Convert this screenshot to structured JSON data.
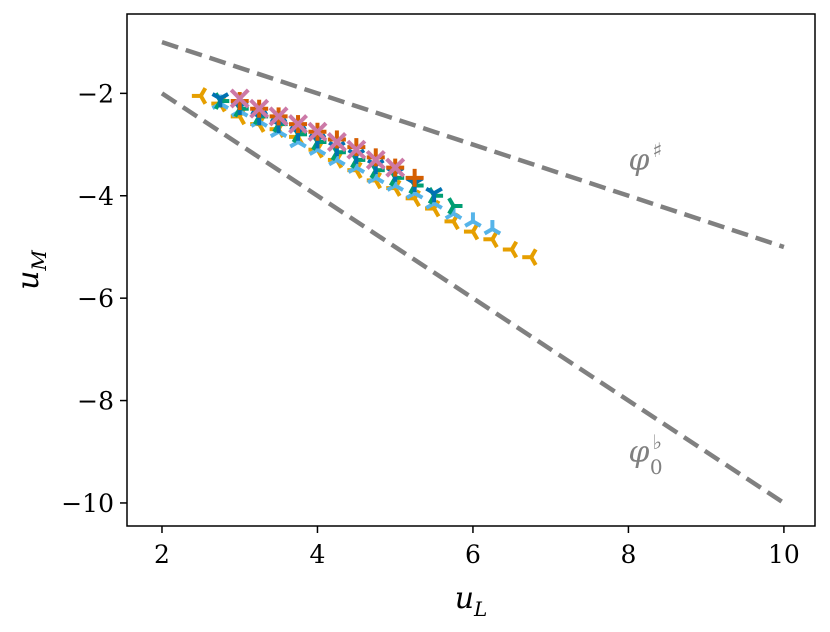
{
  "chart_data": {
    "type": "scatter",
    "title": "",
    "xlabel": {
      "main": "u",
      "sub": "L"
    },
    "ylabel": {
      "main": "u",
      "sub": "M"
    },
    "xlim": [
      1.55,
      10.4
    ],
    "ylim": [
      -10.45,
      -0.45
    ],
    "xticks": [
      2,
      4,
      6,
      8,
      10
    ],
    "xtick_labels": [
      "2",
      "4",
      "6",
      "8",
      "10"
    ],
    "yticks": [
      -2,
      -4,
      -6,
      -8,
      -10
    ],
    "ytick_labels": [
      "−2",
      "−4",
      "−6",
      "−8",
      "−10"
    ],
    "grid": false,
    "legend": "none",
    "reference_lines": [
      {
        "label_main": "φ",
        "label_sup": "♯",
        "label_sub": "",
        "color": "#808080",
        "dashed": true,
        "x": [
          2,
          10
        ],
        "y": [
          -1,
          -5
        ],
        "label_at": [
          8.0,
          -3.5
        ]
      },
      {
        "label_main": "φ",
        "label_sup": "♭",
        "label_sub": "0",
        "color": "#808080",
        "dashed": true,
        "x": [
          2,
          10
        ],
        "y": [
          -2,
          -10
        ],
        "label_at": [
          8.0,
          -9.2
        ]
      }
    ],
    "series": [
      {
        "marker": "tri_left",
        "color": "#E69F00",
        "x": [
          2.5,
          2.75,
          3.0,
          3.25,
          3.5,
          3.75,
          4.0,
          4.25,
          4.5,
          4.75,
          5.0,
          5.25,
          5.5,
          5.75,
          6.0,
          6.25,
          6.5,
          6.75
        ],
        "y": [
          -2.05,
          -2.2,
          -2.45,
          -2.6,
          -2.7,
          -2.85,
          -3.1,
          -3.3,
          -3.5,
          -3.7,
          -3.85,
          -4.05,
          -4.25,
          -4.5,
          -4.7,
          -4.85,
          -5.05,
          -5.2
        ]
      },
      {
        "marker": "tri_up",
        "color": "#56B4E9",
        "x": [
          2.75,
          3.0,
          3.25,
          3.5,
          3.75,
          4.0,
          4.25,
          4.5,
          4.75,
          5.0,
          5.25,
          5.5,
          5.75,
          6.0,
          6.25
        ],
        "y": [
          -2.2,
          -2.35,
          -2.55,
          -2.75,
          -2.95,
          -3.1,
          -3.3,
          -3.45,
          -3.65,
          -3.8,
          -3.95,
          -4.15,
          -4.35,
          -4.5,
          -4.65
        ]
      },
      {
        "marker": "tri_right",
        "color": "#009E73",
        "x": [
          2.75,
          3.0,
          3.25,
          3.5,
          3.75,
          4.0,
          4.25,
          4.5,
          4.75,
          5.0,
          5.25,
          5.5,
          5.75
        ],
        "y": [
          -2.15,
          -2.3,
          -2.45,
          -2.6,
          -2.8,
          -2.95,
          -3.15,
          -3.3,
          -3.5,
          -3.65,
          -3.8,
          -4.0,
          -4.2
        ]
      },
      {
        "marker": "tri_down",
        "color": "#0072B2",
        "x": [
          2.75,
          3.0,
          3.25,
          3.5,
          3.75,
          4.0,
          4.25,
          4.5,
          4.75,
          5.0,
          5.25,
          5.5
        ],
        "y": [
          -2.1,
          -2.25,
          -2.45,
          -2.6,
          -2.75,
          -2.9,
          -3.05,
          -3.2,
          -3.4,
          -3.55,
          -3.75,
          -3.95
        ]
      },
      {
        "marker": "plus",
        "color": "#D55E00",
        "x": [
          3.0,
          3.25,
          3.5,
          3.75,
          4.0,
          4.25,
          4.5,
          4.75,
          5.0,
          5.25
        ],
        "y": [
          -2.15,
          -2.3,
          -2.45,
          -2.6,
          -2.75,
          -2.9,
          -3.05,
          -3.25,
          -3.45,
          -3.65
        ]
      },
      {
        "marker": "x",
        "color": "#CC79A7",
        "x": [
          3.0,
          3.25,
          3.5,
          3.75,
          4.0,
          4.25,
          4.5,
          4.75,
          5.0
        ],
        "y": [
          -2.1,
          -2.3,
          -2.45,
          -2.6,
          -2.75,
          -2.95,
          -3.1,
          -3.3,
          -3.45
        ]
      }
    ]
  }
}
